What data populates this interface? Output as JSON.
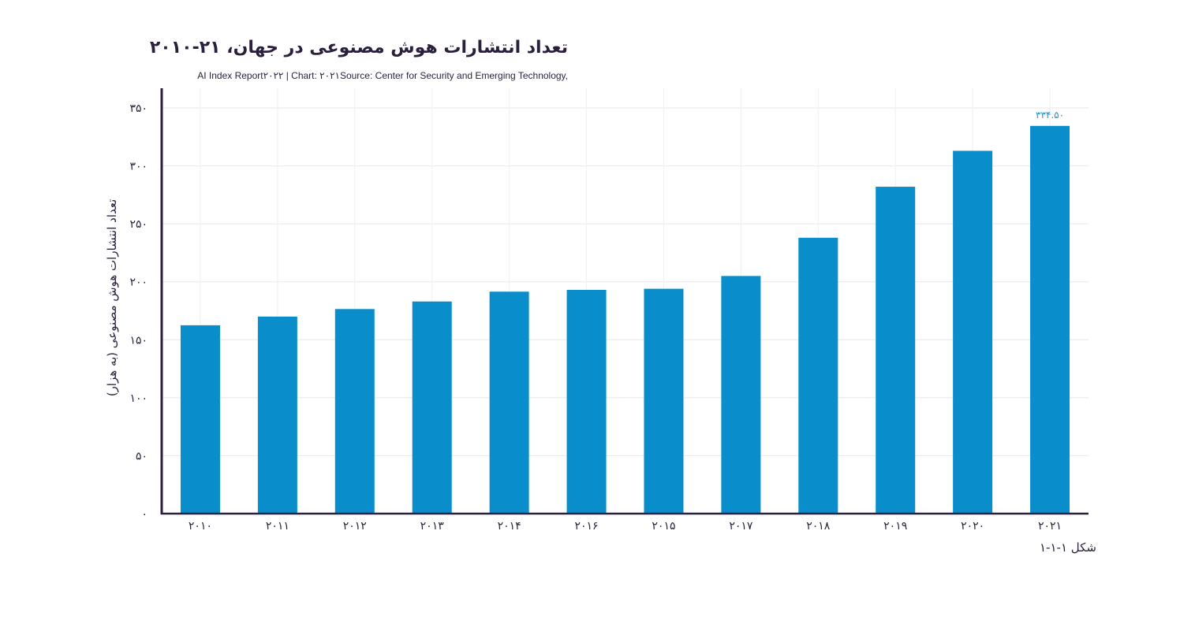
{
  "chart_data": {
    "type": "bar",
    "title": "تعداد انتشارات هوش مصنوعی در جهان، ۲۱-۲۰۱۰",
    "subtitle": "AI Index Report۲۰۲۲ | Chart: ۲۰۲۱Source: Center for Security and Emerging Technology,",
    "xlabel": "",
    "ylabel": "تعداد انتشارات هوش مصنوعی (به هزار)",
    "categories": [
      "۲۰۱۰",
      "۲۰۱۱",
      "۲۰۱۲",
      "۲۰۱۳",
      "۲۰۱۴",
      "۲۰۱۶",
      "۲۰۱۵",
      "۲۰۱۷",
      "۲۰۱۸",
      "۲۰۱۹",
      "۲۰۲۰",
      "۲۰۲۱"
    ],
    "values": [
      162.5,
      170,
      176.5,
      183,
      191.5,
      193,
      194,
      205,
      238,
      282,
      313,
      334.5
    ],
    "data_labels": {
      "11": "۳۳۴.۵۰"
    },
    "ylim": [
      0,
      350
    ],
    "yticks": [
      0,
      50,
      100,
      150,
      200,
      250,
      300,
      350
    ],
    "ytick_labels": [
      "۰",
      "۵۰",
      "۱۰۰",
      "۱۵۰",
      "۲۰۰",
      "۲۵۰",
      "۳۰۰",
      "۳۵۰"
    ],
    "grid": true,
    "bar_color": "#0a8ecb",
    "label_color": "#1e90d0",
    "axis_color": "#2a1f3d"
  },
  "figure_caption": "شکل ۱-۱-۱"
}
